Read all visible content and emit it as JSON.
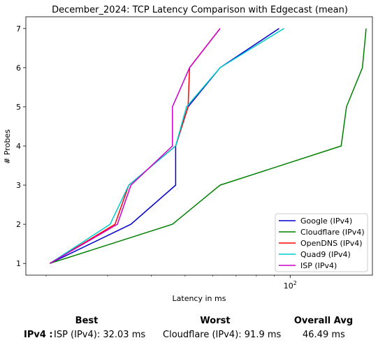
{
  "chart_data": {
    "type": "line",
    "title": "December_2024: TCP Latency Comparison with Edgecast (mean)",
    "xlabel": "Latency in ms",
    "ylabel": "# Probes",
    "xscale": "log",
    "xlim": [
      17.5,
      172
    ],
    "ylim": [
      0.7,
      7.3
    ],
    "x_tick_labels": [
      {
        "value": 100,
        "label": "10^2"
      }
    ],
    "yticks": [
      1,
      2,
      3,
      4,
      5,
      6,
      7
    ],
    "legend_position": "lower-right",
    "series": [
      {
        "name": "Google (IPv4)",
        "color": "#0000cc",
        "x": [
          20.5,
          35,
          47,
          47,
          51,
          63,
          93
        ],
        "y": [
          1,
          2,
          3,
          4,
          5,
          6,
          7
        ]
      },
      {
        "name": "Cloudflare (IPv4)",
        "color": "#008000",
        "x": [
          20.5,
          46,
          63,
          140,
          145,
          161,
          165
        ],
        "y": [
          1,
          2,
          3,
          4,
          5,
          6,
          7
        ]
      },
      {
        "name": "OpenDNS (IPv4)",
        "color": "#ff0000",
        "x": [
          20.5,
          31.5,
          34.5,
          47,
          51,
          51.5,
          63
        ],
        "y": [
          1,
          2,
          3,
          4,
          5,
          6,
          7
        ]
      },
      {
        "name": "Quad9 (IPv4)",
        "color": "#00cccc",
        "x": [
          20.5,
          30.5,
          34.5,
          47,
          50.5,
          63,
          96
        ],
        "y": [
          1,
          2,
          3,
          4,
          5,
          6,
          7
        ]
      },
      {
        "name": "ISP (IPv4)",
        "color": "#cc00cc",
        "x": [
          20.5,
          32,
          35,
          46,
          46,
          51.5,
          63
        ],
        "y": [
          1,
          2,
          3,
          4,
          5,
          6,
          7
        ]
      }
    ]
  },
  "summary": {
    "best_header": "Best",
    "worst_header": "Worst",
    "avg_header": "Overall Avg",
    "row_label": "IPv4 :",
    "best_value": "ISP (IPv4): 32.03 ms",
    "worst_value": "Cloudflare (IPv4): 91.9 ms",
    "avg_value": "46.49 ms"
  }
}
